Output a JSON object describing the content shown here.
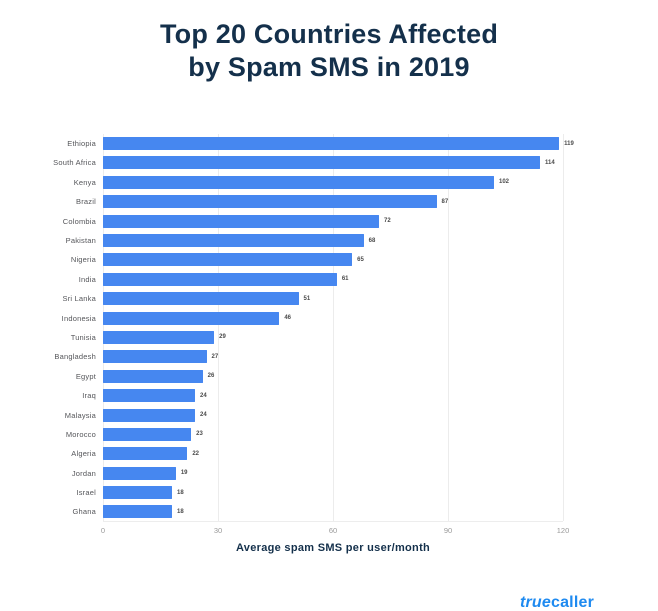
{
  "page": {
    "title_line1": "Top 20 Countries Affected",
    "title_line2": "by Spam SMS in 2019"
  },
  "chart_data": {
    "type": "bar",
    "orientation": "horizontal",
    "title": "Top 20 Countries Affected by Spam SMS in 2019",
    "categories": [
      "Ethiopia",
      "South Africa",
      "Kenya",
      "Brazil",
      "Colombia",
      "Pakistan",
      "Nigeria",
      "India",
      "Sri Lanka",
      "Indonesia",
      "Tunisia",
      "Bangladesh",
      "Egypt",
      "Iraq",
      "Malaysia",
      "Morocco",
      "Algeria",
      "Jordan",
      "Israel",
      "Ghana"
    ],
    "values": [
      119,
      114,
      102,
      87,
      72,
      68,
      65,
      61,
      51,
      46,
      29,
      27,
      26,
      24,
      24,
      23,
      22,
      19,
      18,
      18
    ],
    "xlabel": "Average spam SMS per user/month",
    "ylabel": "",
    "xticks": [
      0,
      30,
      60,
      90,
      120
    ],
    "xlim": [
      0,
      120
    ],
    "grid": "vertical",
    "value_labels": true,
    "legend": "none",
    "bar_color": "#4687f0"
  },
  "footer": {
    "logo_script": "true",
    "logo_rest": "caller",
    "logo_color": "#1e8af0"
  },
  "colors": {
    "title": "#14304b",
    "axis_label": "#14304b",
    "category_label": "#55565a",
    "tick_label": "#9a9a9a",
    "value_label": "#4a4a4a",
    "gridline": "#ececec",
    "background": "#ffffff"
  }
}
